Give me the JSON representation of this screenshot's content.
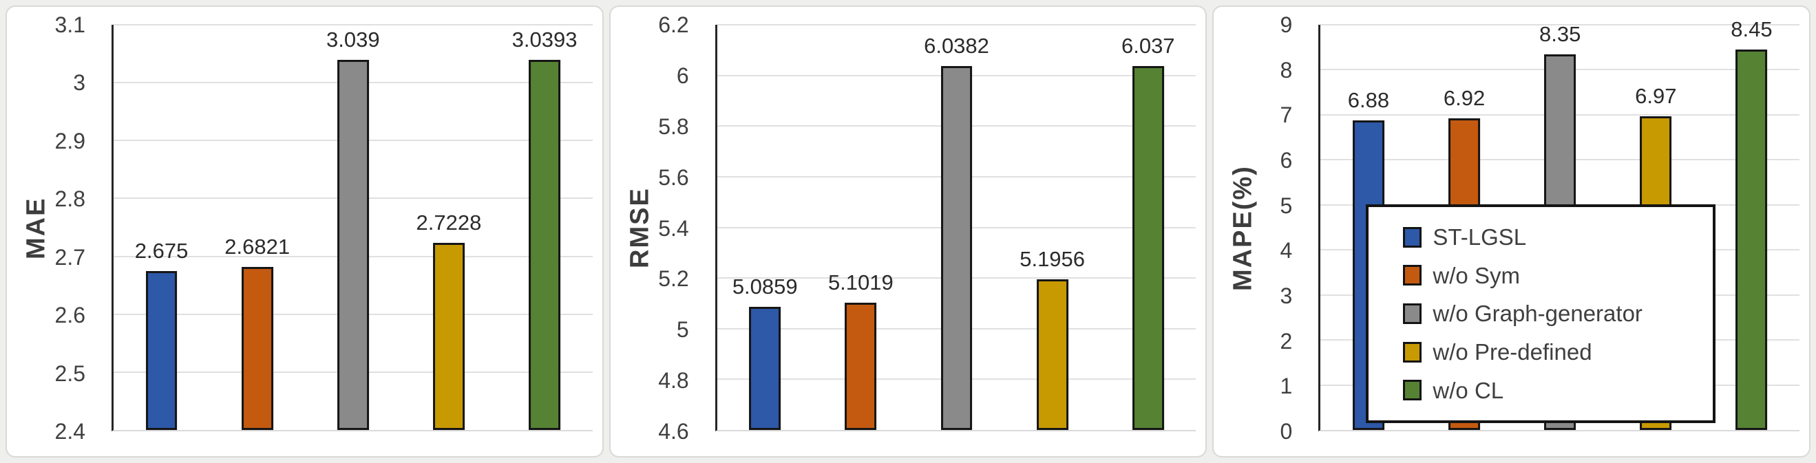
{
  "figure": {
    "background": "#efefed",
    "card_background": "#ffffff",
    "card_border_color": "#d9d9d6",
    "grid_color": "#e0e0e0",
    "axis_color": "#262626",
    "bar_outline_color": "#161616",
    "tick_label_color": "#3f3f3f",
    "value_label_color": "#2b2b2b",
    "series": [
      {
        "name": "ST-LGSL",
        "color": "#2e58a8"
      },
      {
        "name": "w/o Sym",
        "color": "#c45a10"
      },
      {
        "name": "w/o Graph-generator",
        "color": "#8a8a8a"
      },
      {
        "name": "w/o Pre-defined",
        "color": "#c89a02"
      },
      {
        "name": "w/o CL",
        "color": "#568234"
      }
    ]
  },
  "chart_data": [
    {
      "type": "bar",
      "title": "",
      "xlabel": "",
      "ylabel": "MAE",
      "grid": true,
      "legend_visible": false,
      "categories": [
        "ST-LGSL",
        "w/o Sym",
        "w/o Graph-generator",
        "w/o Pre-defined",
        "w/o CL"
      ],
      "values": [
        2.675,
        2.6821,
        3.039,
        2.7228,
        3.0393
      ],
      "value_labels": [
        "2.675",
        "2.6821",
        "3.039",
        "2.7228",
        "3.0393"
      ],
      "ylim": [
        2.4,
        3.1
      ],
      "ytick_values": [
        2.4,
        2.5,
        2.6,
        2.7,
        2.8,
        2.9,
        3.0,
        3.1
      ],
      "ytick_labels": [
        "2.4",
        "2.5",
        "2.6",
        "2.7",
        "2.8",
        "2.9",
        "3",
        "3.1"
      ]
    },
    {
      "type": "bar",
      "title": "",
      "xlabel": "",
      "ylabel": "RMSE",
      "grid": true,
      "legend_visible": false,
      "categories": [
        "ST-LGSL",
        "w/o Sym",
        "w/o Graph-generator",
        "w/o Pre-defined",
        "w/o CL"
      ],
      "values": [
        5.0859,
        5.1019,
        6.0382,
        5.1956,
        6.037
      ],
      "value_labels": [
        "5.0859",
        "5.1019",
        "6.0382",
        "5.1956",
        "6.037"
      ],
      "ylim": [
        4.6,
        6.2
      ],
      "ytick_values": [
        4.6,
        4.8,
        5.0,
        5.2,
        5.4,
        5.6,
        5.8,
        6.0,
        6.2
      ],
      "ytick_labels": [
        "4.6",
        "4.8",
        "5",
        "5.2",
        "5.4",
        "5.6",
        "5.8",
        "6",
        "6.2"
      ]
    },
    {
      "type": "bar",
      "title": "",
      "xlabel": "",
      "ylabel": "MAPE(%)",
      "grid": true,
      "legend_visible": true,
      "legend_position": "inside-bottom-center",
      "legend_entries": [
        "ST-LGSL",
        "w/o Sym",
        "w/o Graph-generator",
        "w/o Pre-defined",
        "w/o CL"
      ],
      "categories": [
        "ST-LGSL",
        "w/o Sym",
        "w/o Graph-generator",
        "w/o Pre-defined",
        "w/o CL"
      ],
      "values": [
        6.88,
        6.92,
        8.35,
        6.97,
        8.45
      ],
      "value_labels": [
        "6.88",
        "6.92",
        "8.35",
        "6.97",
        "8.45"
      ],
      "ylim": [
        0,
        9
      ],
      "ytick_values": [
        0,
        1,
        2,
        3,
        4,
        5,
        6,
        7,
        8,
        9
      ],
      "ytick_labels": [
        "0",
        "1",
        "2",
        "3",
        "4",
        "5",
        "6",
        "7",
        "8",
        "9"
      ]
    }
  ]
}
